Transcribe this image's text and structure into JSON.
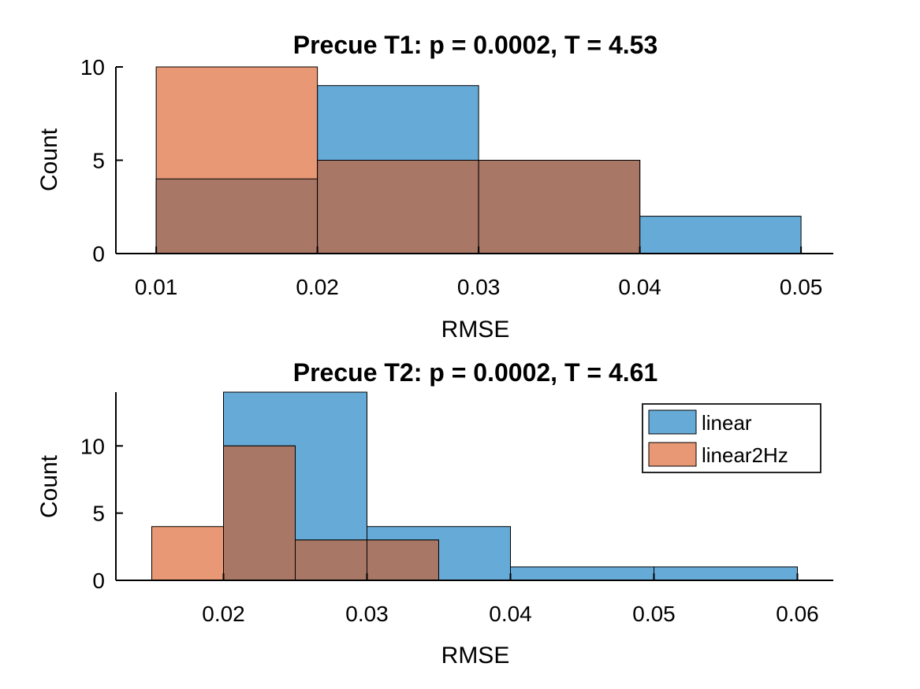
{
  "chart_data": [
    {
      "type": "bar",
      "subtype": "overlaid-histogram",
      "title": "Precue T1: p = 0.0002, T = 4.53",
      "xlabel": "RMSE",
      "ylabel": "Count",
      "xlim": [
        0.0075,
        0.052
      ],
      "ylim": [
        0,
        10
      ],
      "xticks": [
        0.01,
        0.02,
        0.03,
        0.04,
        0.05
      ],
      "xtick_labels": [
        "0.01",
        "0.02",
        "0.03",
        "0.04",
        "0.05"
      ],
      "yticks": [
        0,
        5,
        10
      ],
      "ytick_labels": [
        "0",
        "5",
        "10"
      ],
      "grid": false,
      "legend": null,
      "series": [
        {
          "name": "linear",
          "color": "#66aad7",
          "bins": [
            {
              "start": 0.01,
              "end": 0.02,
              "count": 4
            },
            {
              "start": 0.02,
              "end": 0.03,
              "count": 9
            },
            {
              "start": 0.03,
              "end": 0.04,
              "count": 5
            },
            {
              "start": 0.04,
              "end": 0.05,
              "count": 2
            }
          ]
        },
        {
          "name": "linear2Hz",
          "color": "#e89874",
          "bins": [
            {
              "start": 0.01,
              "end": 0.02,
              "count": 10
            },
            {
              "start": 0.02,
              "end": 0.03,
              "count": 5
            },
            {
              "start": 0.03,
              "end": 0.04,
              "count": 5
            }
          ]
        }
      ]
    },
    {
      "type": "bar",
      "subtype": "overlaid-histogram",
      "title": "Precue T2: p = 0.0002, T = 4.61",
      "xlabel": "RMSE",
      "ylabel": "Count",
      "xlim": [
        0.0125,
        0.0625
      ],
      "ylim": [
        0,
        14
      ],
      "xticks": [
        0.02,
        0.03,
        0.04,
        0.05,
        0.06
      ],
      "xtick_labels": [
        "0.02",
        "0.03",
        "0.04",
        "0.05",
        "0.06"
      ],
      "yticks": [
        0,
        5,
        10
      ],
      "ytick_labels": [
        "0",
        "5",
        "10"
      ],
      "grid": false,
      "legend": "top-right",
      "series": [
        {
          "name": "linear",
          "color": "#66aad7",
          "bins": [
            {
              "start": 0.02,
              "end": 0.03,
              "count": 14
            },
            {
              "start": 0.03,
              "end": 0.04,
              "count": 4
            },
            {
              "start": 0.04,
              "end": 0.05,
              "count": 1
            },
            {
              "start": 0.05,
              "end": 0.06,
              "count": 1
            }
          ]
        },
        {
          "name": "linear2Hz",
          "color": "#e89874",
          "bins": [
            {
              "start": 0.015,
              "end": 0.02,
              "count": 4
            },
            {
              "start": 0.02,
              "end": 0.025,
              "count": 10
            },
            {
              "start": 0.025,
              "end": 0.03,
              "count": 3
            },
            {
              "start": 0.03,
              "end": 0.035,
              "count": 3
            }
          ]
        }
      ]
    }
  ],
  "colors": {
    "linear": "#66aad7",
    "linear2Hz": "#e89874",
    "overlap": "#a97766",
    "axis": "#000000"
  }
}
